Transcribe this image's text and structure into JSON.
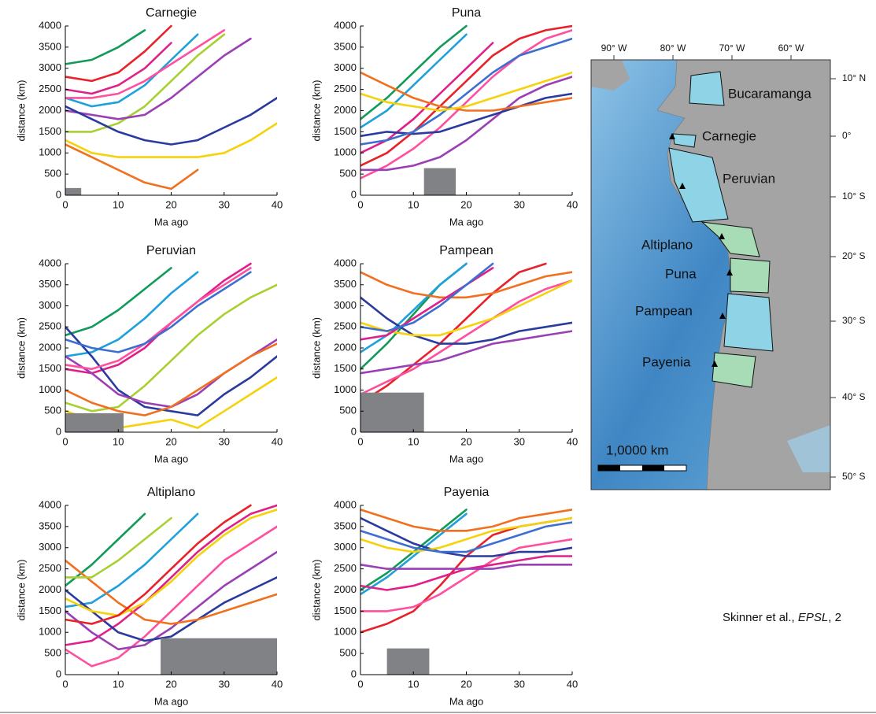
{
  "chart_data": [
    {
      "type": "line",
      "title": "Carnegie",
      "xlabel": "Ma ago",
      "ylabel": "distance (km)",
      "x": [
        0,
        5,
        10,
        15,
        20,
        25,
        30,
        35,
        40
      ],
      "xlim": [
        0,
        40
      ],
      "ylim": [
        0,
        4000
      ],
      "xticks": [
        0,
        10,
        20,
        30,
        40
      ],
      "yticks": [
        0,
        500,
        1000,
        1500,
        2000,
        2500,
        3000,
        3500,
        4000
      ],
      "box": {
        "x": [
          0,
          3
        ],
        "y": [
          0,
          170
        ]
      },
      "series": [
        {
          "color": "#129a5a",
          "values": [
            3100,
            3200,
            3500,
            3900,
            null,
            null,
            null,
            null,
            null
          ]
        },
        {
          "color": "#e8222a",
          "values": [
            2800,
            2700,
            2900,
            3400,
            4000,
            null,
            null,
            null,
            null
          ]
        },
        {
          "color": "#e0208a",
          "values": [
            2500,
            2400,
            2600,
            3000,
            3600,
            null,
            null,
            null,
            null
          ]
        },
        {
          "color": "#1ea0dc",
          "values": [
            2300,
            2100,
            2200,
            2600,
            3200,
            3800,
            null,
            null,
            null
          ]
        },
        {
          "color": "#a8d030",
          "values": [
            1500,
            1500,
            1700,
            2100,
            2700,
            3300,
            3800,
            null,
            null
          ]
        },
        {
          "color": "#9a3fb5",
          "values": [
            2000,
            1900,
            1800,
            1900,
            2300,
            2800,
            3300,
            3700,
            null
          ]
        },
        {
          "color": "#2b3a9e",
          "values": [
            2100,
            1800,
            1500,
            1300,
            1200,
            1300,
            1600,
            1900,
            2300
          ]
        },
        {
          "color": "#f5d20a",
          "values": [
            1300,
            1000,
            900,
            900,
            900,
            900,
            1000,
            1300,
            1700
          ]
        },
        {
          "color": "#f07020",
          "values": [
            1200,
            900,
            600,
            300,
            150,
            600,
            null,
            null,
            null
          ]
        },
        {
          "color": "#ff4f9f",
          "values": [
            2300,
            2300,
            2400,
            2700,
            3100,
            3500,
            3900,
            null,
            null
          ]
        }
      ]
    },
    {
      "type": "line",
      "title": "Puna",
      "xlabel": "Ma ago",
      "ylabel": "distance (km)",
      "x": [
        0,
        5,
        10,
        15,
        20,
        25,
        30,
        35,
        40
      ],
      "xlim": [
        0,
        40
      ],
      "ylim": [
        0,
        4000
      ],
      "xticks": [
        0,
        10,
        20,
        30,
        40
      ],
      "yticks": [
        0,
        500,
        1000,
        1500,
        2000,
        2500,
        3000,
        3500,
        4000
      ],
      "box": {
        "x": [
          12,
          18
        ],
        "y": [
          0,
          640
        ]
      },
      "series": [
        {
          "color": "#129a5a",
          "values": [
            1800,
            2300,
            2900,
            3500,
            4000,
            null,
            null,
            null,
            null
          ]
        },
        {
          "color": "#1ea0dc",
          "values": [
            1600,
            2000,
            2600,
            3200,
            3800,
            null,
            null,
            null,
            null
          ]
        },
        {
          "color": "#e0208a",
          "values": [
            1000,
            1300,
            1800,
            2400,
            3000,
            3600,
            null,
            null,
            null
          ]
        },
        {
          "color": "#e8222a",
          "values": [
            700,
            1000,
            1500,
            2100,
            2700,
            3300,
            3700,
            3900,
            4000
          ]
        },
        {
          "color": "#ff4f9f",
          "values": [
            400,
            700,
            1100,
            1600,
            2200,
            2800,
            3300,
            3700,
            3900
          ]
        },
        {
          "color": "#9a3fb5",
          "values": [
            600,
            600,
            700,
            900,
            1300,
            1800,
            2300,
            2600,
            2800
          ]
        },
        {
          "color": "#2b3a9e",
          "values": [
            1400,
            1500,
            1450,
            1500,
            1700,
            1900,
            2100,
            2300,
            2400
          ]
        },
        {
          "color": "#f07020",
          "values": [
            2900,
            2600,
            2300,
            2100,
            2000,
            2000,
            2100,
            2200,
            2300
          ]
        },
        {
          "color": "#3d6fd0",
          "values": [
            1200,
            1300,
            1500,
            1900,
            2400,
            2900,
            3300,
            3500,
            3700
          ]
        },
        {
          "color": "#f5d20a",
          "values": [
            2400,
            2200,
            2100,
            2000,
            2100,
            2300,
            2500,
            2700,
            2900
          ]
        }
      ]
    },
    {
      "type": "line",
      "title": "Peruvian",
      "xlabel": "Ma ago",
      "ylabel": "distance (km)",
      "x": [
        0,
        5,
        10,
        15,
        20,
        25,
        30,
        35,
        40
      ],
      "xlim": [
        0,
        40
      ],
      "ylim": [
        0,
        4000
      ],
      "xticks": [
        0,
        10,
        20,
        30,
        40
      ],
      "yticks": [
        0,
        500,
        1000,
        1500,
        2000,
        2500,
        3000,
        3500,
        4000
      ],
      "box": {
        "x": [
          0,
          11
        ],
        "y": [
          0,
          450
        ]
      },
      "series": [
        {
          "color": "#129a5a",
          "values": [
            2300,
            2500,
            2900,
            3400,
            3900,
            null,
            null,
            null,
            null
          ]
        },
        {
          "color": "#1ea0dc",
          "values": [
            1800,
            1900,
            2200,
            2700,
            3300,
            3800,
            null,
            null,
            null
          ]
        },
        {
          "color": "#e0208a",
          "values": [
            1500,
            1400,
            1600,
            2000,
            2600,
            3100,
            3600,
            4000,
            null
          ]
        },
        {
          "color": "#a8d030",
          "values": [
            700,
            500,
            600,
            1100,
            1700,
            2300,
            2800,
            3200,
            3500
          ]
        },
        {
          "color": "#f5d20a",
          "values": [
            500,
            300,
            100,
            200,
            300,
            100,
            500,
            900,
            1300
          ]
        },
        {
          "color": "#2b3a9e",
          "values": [
            2500,
            1800,
            1000,
            600,
            500,
            400,
            900,
            1300,
            1800
          ]
        },
        {
          "color": "#9a3fb5",
          "values": [
            1800,
            1400,
            900,
            700,
            600,
            900,
            1400,
            1800,
            2200
          ]
        },
        {
          "color": "#f07020",
          "values": [
            1000,
            700,
            500,
            400,
            600,
            1000,
            1400,
            1800,
            2100
          ]
        },
        {
          "color": "#ff4f9f",
          "values": [
            1600,
            1500,
            1700,
            2100,
            2600,
            3100,
            3500,
            3900,
            null
          ]
        },
        {
          "color": "#3d6fd0",
          "values": [
            2200,
            2000,
            1900,
            2100,
            2500,
            3000,
            3400,
            3800,
            null
          ]
        }
      ]
    },
    {
      "type": "line",
      "title": "Pampean",
      "xlabel": "Ma ago",
      "ylabel": "distance (km)",
      "x": [
        0,
        5,
        10,
        15,
        20,
        25,
        30,
        35,
        40
      ],
      "xlim": [
        0,
        40
      ],
      "ylim": [
        0,
        4000
      ],
      "xticks": [
        0,
        10,
        20,
        30,
        40
      ],
      "yticks": [
        0,
        500,
        1000,
        1500,
        2000,
        2500,
        3000,
        3500,
        4000
      ],
      "box": {
        "x": [
          0,
          12
        ],
        "y": [
          0,
          940
        ]
      },
      "series": [
        {
          "color": "#129a5a",
          "values": [
            1500,
            2100,
            2800,
            3500,
            4000,
            null,
            null,
            null,
            null
          ]
        },
        {
          "color": "#1ea0dc",
          "values": [
            1900,
            2300,
            2900,
            3500,
            4000,
            null,
            null,
            null,
            null
          ]
        },
        {
          "color": "#e8222a",
          "values": [
            700,
            1100,
            1600,
            2100,
            2700,
            3300,
            3800,
            4000,
            null
          ]
        },
        {
          "color": "#ff4f9f",
          "values": [
            900,
            1200,
            1500,
            1900,
            2300,
            2700,
            3100,
            3400,
            3600
          ]
        },
        {
          "color": "#9a3fb5",
          "values": [
            1400,
            1500,
            1600,
            1700,
            1900,
            2100,
            2200,
            2300,
            2400
          ]
        },
        {
          "color": "#2b3a9e",
          "values": [
            3200,
            2700,
            2300,
            2100,
            2100,
            2200,
            2400,
            2500,
            2600
          ]
        },
        {
          "color": "#f07020",
          "values": [
            3800,
            3500,
            3300,
            3200,
            3200,
            3300,
            3500,
            3700,
            3800
          ]
        },
        {
          "color": "#f5d20a",
          "values": [
            2600,
            2400,
            2300,
            2300,
            2500,
            2700,
            3000,
            3300,
            3600
          ]
        },
        {
          "color": "#e0208a",
          "values": [
            2200,
            2300,
            2700,
            3100,
            3500,
            3900,
            null,
            null,
            null
          ]
        },
        {
          "color": "#3d6fd0",
          "values": [
            2500,
            2400,
            2600,
            3000,
            3500,
            4000,
            null,
            null,
            null
          ]
        }
      ]
    },
    {
      "type": "line",
      "title": "Altiplano",
      "xlabel": "Ma ago",
      "ylabel": "distance (km)",
      "x": [
        0,
        5,
        10,
        15,
        20,
        25,
        30,
        35,
        40
      ],
      "xlim": [
        0,
        40
      ],
      "ylim": [
        0,
        4000
      ],
      "xticks": [
        0,
        10,
        20,
        30,
        40
      ],
      "yticks": [
        0,
        500,
        1000,
        1500,
        2000,
        2500,
        3000,
        3500,
        4000
      ],
      "box": {
        "x": [
          18,
          40
        ],
        "y": [
          0,
          860
        ]
      },
      "series": [
        {
          "color": "#129a5a",
          "values": [
            2100,
            2600,
            3200,
            3800,
            null,
            null,
            null,
            null,
            null
          ]
        },
        {
          "color": "#1ea0dc",
          "values": [
            1600,
            1700,
            2100,
            2600,
            3200,
            3800,
            null,
            null,
            null
          ]
        },
        {
          "color": "#e0208a",
          "values": [
            700,
            800,
            1200,
            1700,
            2300,
            2900,
            3400,
            3800,
            4000
          ]
        },
        {
          "color": "#ff4f9f",
          "values": [
            600,
            200,
            400,
            900,
            1500,
            2100,
            2700,
            3100,
            3500
          ]
        },
        {
          "color": "#9a3fb5",
          "values": [
            1500,
            1000,
            600,
            700,
            1100,
            1600,
            2100,
            2500,
            2900
          ]
        },
        {
          "color": "#2b3a9e",
          "values": [
            2000,
            1500,
            1000,
            800,
            900,
            1300,
            1700,
            2000,
            2300
          ]
        },
        {
          "color": "#f07020",
          "values": [
            2700,
            2200,
            1700,
            1300,
            1200,
            1300,
            1500,
            1700,
            1900
          ]
        },
        {
          "color": "#f5d20a",
          "values": [
            1800,
            1500,
            1400,
            1700,
            2200,
            2800,
            3300,
            3700,
            3900
          ]
        },
        {
          "color": "#a8d030",
          "values": [
            2300,
            2300,
            2700,
            3200,
            3700,
            null,
            null,
            null,
            null
          ]
        },
        {
          "color": "#e8222a",
          "values": [
            1300,
            1200,
            1400,
            1900,
            2500,
            3100,
            3600,
            4000,
            null
          ]
        }
      ]
    },
    {
      "type": "line",
      "title": "Payenia",
      "xlabel": "Ma ago",
      "ylabel": "distance (km)",
      "x": [
        0,
        5,
        10,
        15,
        20,
        25,
        30,
        35,
        40
      ],
      "xlim": [
        0,
        40
      ],
      "ylim": [
        0,
        4000
      ],
      "xticks": [
        0,
        10,
        20,
        30,
        40
      ],
      "yticks": [
        0,
        500,
        1000,
        1500,
        2000,
        2500,
        3000,
        3500,
        4000
      ],
      "box": {
        "x": [
          5,
          13
        ],
        "y": [
          0,
          620
        ]
      },
      "series": [
        {
          "color": "#129a5a",
          "values": [
            2000,
            2400,
            2900,
            3400,
            3900,
            null,
            null,
            null,
            null
          ]
        },
        {
          "color": "#1ea0dc",
          "values": [
            1900,
            2300,
            2800,
            3300,
            3800,
            null,
            null,
            null,
            null
          ]
        },
        {
          "color": "#e8222a",
          "values": [
            1000,
            1200,
            1500,
            2100,
            2800,
            3300,
            3500,
            3600,
            3700
          ]
        },
        {
          "color": "#ff4f9f",
          "values": [
            1500,
            1500,
            1600,
            1900,
            2300,
            2700,
            3000,
            3100,
            3200
          ]
        },
        {
          "color": "#e0208a",
          "values": [
            2100,
            2000,
            2100,
            2300,
            2500,
            2600,
            2700,
            2800,
            2800
          ]
        },
        {
          "color": "#9a3fb5",
          "values": [
            2600,
            2500,
            2500,
            2500,
            2500,
            2500,
            2600,
            2600,
            2600
          ]
        },
        {
          "color": "#2b3a9e",
          "values": [
            3700,
            3400,
            3100,
            2900,
            2800,
            2800,
            2900,
            2900,
            3000
          ]
        },
        {
          "color": "#f07020",
          "values": [
            3900,
            3700,
            3500,
            3400,
            3400,
            3500,
            3700,
            3800,
            3900
          ]
        },
        {
          "color": "#f5d20a",
          "values": [
            3200,
            3000,
            2900,
            3000,
            3200,
            3400,
            3500,
            3600,
            3700
          ]
        },
        {
          "color": "#3d6fd0",
          "values": [
            3400,
            3200,
            3000,
            2900,
            2900,
            3100,
            3300,
            3500,
            3600
          ]
        }
      ]
    }
  ],
  "map": {
    "lon_labels": [
      "90° W",
      "80° W",
      "70° W",
      "60° W"
    ],
    "lat_labels": [
      "10° N",
      "0°",
      "10° S",
      "20° S",
      "30° S",
      "40° S",
      "50° S"
    ],
    "regions": [
      "Bucaramanga",
      "Carnegie",
      "Peruvian",
      "Altiplano",
      "Puna",
      "Pampean",
      "Payenia"
    ],
    "scale_label": "1,0000 km"
  },
  "citation": {
    "authors": "Skinner et al., ",
    "journal": "EPSL",
    "rest": ", 2"
  }
}
